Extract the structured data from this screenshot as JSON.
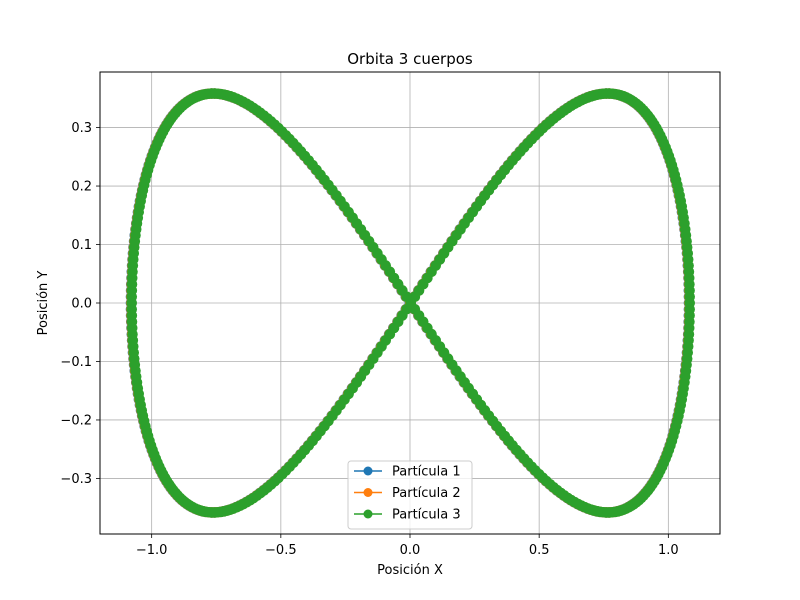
{
  "chart_data": {
    "type": "line",
    "title": "Orbita 3 cuerpos",
    "xlabel": "Posición X",
    "ylabel": "Posición Y",
    "xlim": [
      -1.2,
      1.2
    ],
    "ylim": [
      -0.395,
      0.395
    ],
    "xticks": [
      -1.0,
      -0.5,
      0.0,
      0.5,
      1.0
    ],
    "xtick_labels": [
      "−1.0",
      "−0.5",
      "0.0",
      "0.5",
      "1.0"
    ],
    "yticks": [
      -0.3,
      -0.2,
      -0.1,
      0.0,
      0.1,
      0.2,
      0.3
    ],
    "ytick_labels": [
      "−0.3",
      "−0.2",
      "−0.1",
      "0.0",
      "0.1",
      "0.2",
      "0.3"
    ],
    "grid": true,
    "legend_position": "bottom-center",
    "curve": {
      "shape": "figure-eight",
      "x_amplitude": 1.08,
      "y_amplitude": 0.358
    },
    "series": [
      {
        "name": "Partícula 1",
        "color": "#1f77b4",
        "marker": "circle"
      },
      {
        "name": "Partícula 2",
        "color": "#ff7f0e",
        "marker": "circle"
      },
      {
        "name": "Partícula 3",
        "color": "#2ca02c",
        "marker": "circle"
      }
    ]
  }
}
